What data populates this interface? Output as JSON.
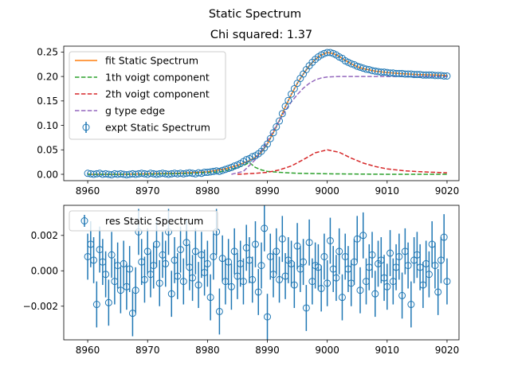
{
  "figure": {
    "suptitle": "Static Spectrum"
  },
  "chart_data": [
    {
      "type": "scatter",
      "title": "Chi squared:  1.37",
      "xlabel": "",
      "ylabel": "",
      "xlim": [
        8956,
        9022
      ],
      "ylim": [
        -0.013,
        0.262
      ],
      "xticks": [
        8960,
        8970,
        8980,
        8990,
        9000,
        9010,
        9020
      ],
      "xtick_labels": [
        "8960",
        "8970",
        "8980",
        "8990",
        "9000",
        "9010",
        "9020"
      ],
      "yticks": [
        0.0,
        0.05,
        0.1,
        0.15,
        0.2,
        0.25
      ],
      "ytick_labels": [
        "0.00",
        "0.05",
        "0.10",
        "0.15",
        "0.20",
        "0.25"
      ],
      "grid": false,
      "legend_position": "upper-left",
      "colors": {
        "fit": "#ff7f0e",
        "voigt1": "#2ca02c",
        "voigt2": "#d62728",
        "edge": "#9467bd",
        "expt": "#1f77b4"
      },
      "series": [
        {
          "name": "fit Static Spectrum",
          "style": "solid",
          "x": [
            8960,
            8965,
            8970,
            8975,
            8980,
            8983,
            8985,
            8987,
            8988,
            8989,
            8990,
            8991,
            8992,
            8993,
            8994,
            8995,
            8996,
            8997,
            8998,
            8999,
            9000,
            9001,
            9002,
            9003,
            9004,
            9005,
            9006,
            9008,
            9010,
            9012,
            9015,
            9018,
            9020
          ],
          "y": [
            0.0,
            0.0,
            0.001,
            0.002,
            0.005,
            0.011,
            0.018,
            0.028,
            0.035,
            0.045,
            0.062,
            0.085,
            0.11,
            0.138,
            0.163,
            0.186,
            0.205,
            0.222,
            0.235,
            0.244,
            0.249,
            0.247,
            0.241,
            0.233,
            0.226,
            0.22,
            0.216,
            0.211,
            0.208,
            0.206,
            0.204,
            0.203,
            0.202
          ]
        },
        {
          "name": "1th voigt component",
          "style": "dashed",
          "x": [
            8960,
            8970,
            8978,
            8982,
            8984,
            8986,
            8987,
            8988,
            8989,
            8990,
            8992,
            8995,
            9000,
            9010,
            9020
          ],
          "y": [
            0.0,
            0.0,
            0.002,
            0.005,
            0.01,
            0.018,
            0.024,
            0.014,
            0.009,
            0.006,
            0.004,
            0.002,
            0.001,
            0.0,
            0.0
          ]
        },
        {
          "name": "2th voigt component",
          "style": "dashed",
          "x": [
            8985,
            8988,
            8990,
            8992,
            8994,
            8996,
            8998,
            9000,
            9002,
            9004,
            9006,
            9008,
            9010,
            9013,
            9016,
            9020
          ],
          "y": [
            0.0,
            0.002,
            0.004,
            0.009,
            0.017,
            0.03,
            0.044,
            0.05,
            0.045,
            0.033,
            0.023,
            0.016,
            0.011,
            0.007,
            0.005,
            0.003
          ]
        },
        {
          "name": "g type edge",
          "style": "dashed",
          "x": [
            8984,
            8986,
            8988,
            8990,
            8992,
            8993,
            8994,
            8995,
            8996,
            8997,
            8998,
            8999,
            9000,
            9002,
            9005,
            9010,
            9020
          ],
          "y": [
            0.0,
            0.006,
            0.03,
            0.068,
            0.11,
            0.13,
            0.148,
            0.163,
            0.176,
            0.186,
            0.193,
            0.197,
            0.199,
            0.2,
            0.2,
            0.2,
            0.2
          ]
        }
      ],
      "points": {
        "name": "expt Static Spectrum",
        "x": [
          8960,
          8960.5,
          8961,
          8961.5,
          8962,
          8962.5,
          8963,
          8963.5,
          8964,
          8964.5,
          8965,
          8965.5,
          8966,
          8966.5,
          8967,
          8967.5,
          8968,
          8968.5,
          8969,
          8969.5,
          8970,
          8970.5,
          8971,
          8971.5,
          8972,
          8972.5,
          8973,
          8973.5,
          8974,
          8974.5,
          8975,
          8975.5,
          8976,
          8976.5,
          8977,
          8977.5,
          8978,
          8978.5,
          8979,
          8979.5,
          8980,
          8980.5,
          8981,
          8981.5,
          8982,
          8982.5,
          8983,
          8983.5,
          8984,
          8984.5,
          8985,
          8985.5,
          8986,
          8986.5,
          8987,
          8987.5,
          8988,
          8988.5,
          8989,
          8989.5,
          8990,
          8990.5,
          8991,
          8991.5,
          8992,
          8992.5,
          8993,
          8993.5,
          8994,
          8994.5,
          8995,
          8995.5,
          8996,
          8996.5,
          8997,
          8997.5,
          8998,
          8998.5,
          8999,
          8999.5,
          9000,
          9000.5,
          9001,
          9001.5,
          9002,
          9002.5,
          9003,
          9003.5,
          9004,
          9004.5,
          9005,
          9005.5,
          9006,
          9006.5,
          9007,
          9007.5,
          9008,
          9008.5,
          9009,
          9009.5,
          9010,
          9010.5,
          9011,
          9011.5,
          9012,
          9012.5,
          9013,
          9013.5,
          9014,
          9014.5,
          9015,
          9015.5,
          9016,
          9016.5,
          9017,
          9017.5,
          9018,
          9018.5,
          9019,
          9019.5,
          9020
        ],
        "y": [
          0.002,
          0.001,
          0.0,
          0.001,
          0.002,
          0.0,
          0.001,
          0.0,
          -0.001,
          0.001,
          0.0,
          0.001,
          0.0,
          -0.001,
          0.0,
          0.001,
          0.0,
          0.001,
          0.002,
          0.001,
          0.0,
          0.002,
          0.001,
          0.0,
          0.001,
          0.002,
          0.001,
          0.0,
          0.001,
          0.002,
          0.001,
          0.002,
          0.001,
          0.002,
          0.003,
          0.002,
          0.001,
          0.003,
          0.002,
          0.004,
          0.004,
          0.005,
          0.006,
          0.007,
          0.006,
          0.008,
          0.01,
          0.012,
          0.014,
          0.017,
          0.019,
          0.022,
          0.026,
          0.03,
          0.032,
          0.036,
          0.038,
          0.042,
          0.047,
          0.054,
          0.062,
          0.073,
          0.085,
          0.097,
          0.109,
          0.124,
          0.139,
          0.151,
          0.164,
          0.175,
          0.186,
          0.196,
          0.205,
          0.214,
          0.222,
          0.229,
          0.235,
          0.24,
          0.244,
          0.247,
          0.249,
          0.249,
          0.247,
          0.244,
          0.24,
          0.237,
          0.232,
          0.229,
          0.226,
          0.224,
          0.221,
          0.219,
          0.217,
          0.215,
          0.214,
          0.212,
          0.211,
          0.21,
          0.209,
          0.209,
          0.208,
          0.207,
          0.207,
          0.206,
          0.206,
          0.206,
          0.205,
          0.205,
          0.205,
          0.204,
          0.204,
          0.204,
          0.203,
          0.203,
          0.203,
          0.203,
          0.202,
          0.202,
          0.202,
          0.201,
          0.201
        ],
        "yerr": 0.0015
      }
    },
    {
      "type": "scatter",
      "title": "",
      "xlabel": "",
      "ylabel": "",
      "xlim": [
        8956,
        9022
      ],
      "ylim": [
        -0.0039,
        0.0037
      ],
      "xticks": [
        8960,
        8970,
        8980,
        8990,
        9000,
        9010,
        9020
      ],
      "xtick_labels": [
        "8960",
        "8970",
        "8980",
        "8990",
        "9000",
        "9010",
        "9020"
      ],
      "yticks": [
        -0.002,
        0.0,
        0.002
      ],
      "ytick_labels": [
        "−0.002",
        "0.000",
        "0.002"
      ],
      "grid": false,
      "legend_position": "upper-left",
      "points": {
        "name": "res Static Spectrum",
        "color": "#1f77b4",
        "x": [
          8960,
          8960.5,
          8961,
          8961.5,
          8962,
          8962.5,
          8963,
          8963.5,
          8964,
          8964.5,
          8965,
          8965.5,
          8966,
          8966.5,
          8967,
          8967.5,
          8968,
          8968.5,
          8969,
          8969.5,
          8970,
          8970.5,
          8971,
          8971.5,
          8972,
          8972.5,
          8973,
          8973.5,
          8974,
          8974.5,
          8975,
          8975.5,
          8976,
          8976.5,
          8977,
          8977.5,
          8978,
          8978.5,
          8979,
          8979.5,
          8980,
          8980.5,
          8981,
          8981.5,
          8982,
          8982.5,
          8983,
          8983.5,
          8984,
          8984.5,
          8985,
          8985.5,
          8986,
          8986.5,
          8987,
          8987.5,
          8988,
          8988.5,
          8989,
          8989.5,
          8990,
          8990.5,
          8991,
          8991.5,
          8992,
          8992.5,
          8993,
          8993.5,
          8994,
          8994.5,
          8995,
          8995.5,
          8996,
          8996.5,
          8997,
          8997.5,
          8998,
          8998.5,
          8999,
          8999.5,
          9000,
          9000.5,
          9001,
          9001.5,
          9002,
          9002.5,
          9003,
          9003.5,
          9004,
          9004.5,
          9005,
          9005.5,
          9006,
          9006.5,
          9007,
          9007.5,
          9008,
          9008.5,
          9009,
          9009.5,
          9010,
          9010.5,
          9011,
          9011.5,
          9012,
          9012.5,
          9013,
          9013.5,
          9014,
          9014.5,
          9015,
          9015.5,
          9016,
          9016.5,
          9017,
          9017.5,
          9018,
          9018.5,
          9019,
          9019.5,
          9020
        ],
        "y": [
          0.0008,
          0.0015,
          0.0006,
          -0.0019,
          0.0012,
          0.0005,
          -0.0002,
          -0.0018,
          0.0009,
          -0.0006,
          0.0003,
          -0.0011,
          0.0004,
          -0.0009,
          0.0001,
          -0.0024,
          -0.0011,
          0.0022,
          0.0005,
          -0.0005,
          0.0011,
          -0.0002,
          0.0003,
          0.0015,
          -0.0007,
          0.0009,
          0.0004,
          0.0022,
          -0.0013,
          0.0006,
          -0.0003,
          0.0012,
          -0.0006,
          0.0016,
          0.0002,
          -0.0004,
          0.0011,
          -0.0008,
          0.0009,
          -0.0001,
          0.0004,
          -0.0015,
          0.0008,
          0.0022,
          -0.0023,
          0.0007,
          -0.0006,
          0.0005,
          -0.0009,
          0.0011,
          -0.0003,
          0.0004,
          -0.0006,
          0.0013,
          0.0006,
          -0.0005,
          0.0015,
          -0.0012,
          0.0003,
          0.0024,
          -0.0026,
          0.0008,
          -0.0002,
          0.0011,
          -0.0005,
          0.0018,
          -0.0003,
          0.0006,
          0.0004,
          -0.0008,
          0.0014,
          0.0001,
          0.0005,
          -0.0021,
          0.0016,
          -0.0006,
          0.0003,
          0.0002,
          -0.001,
          0.0008,
          -0.0007,
          0.0017,
          0.0001,
          -0.0004,
          0.0011,
          -0.0015,
          0.0008,
          0.0001,
          -0.0007,
          0.0005,
          0.0018,
          -0.0011,
          0.002,
          -0.0006,
          0.0002,
          0.0009,
          -0.0013,
          0.0004,
          0.0006,
          -0.0004,
          -0.0009,
          0.001,
          -0.0006,
          0.0002,
          0.0008,
          -0.0014,
          0.0011,
          0.0003,
          -0.0019,
          0.0006,
          0.0009,
          0.0002,
          -0.0008,
          0.0004,
          -0.0002,
          0.0015,
          0.0003,
          -0.0012,
          0.0006,
          0.0019,
          -0.0006
        ],
        "yerr": 0.0013
      }
    }
  ]
}
